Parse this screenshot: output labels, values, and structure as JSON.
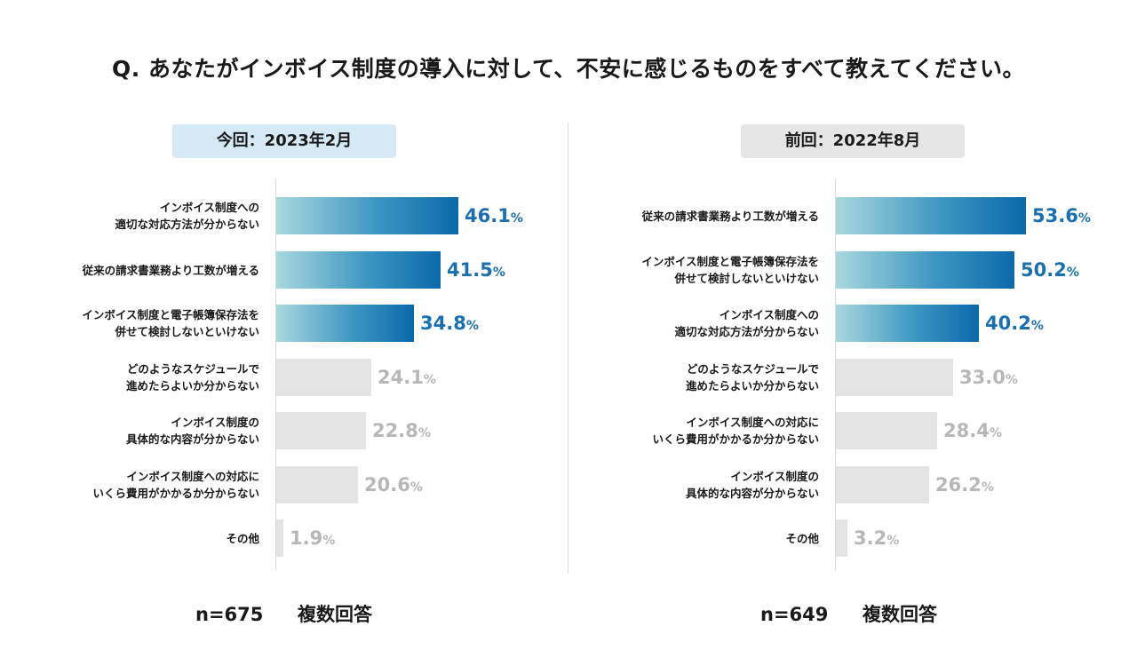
{
  "title": "Q. あなたがインボイス制度の導入に対して、不安に感じるものをすべて教えてください。",
  "colors": {
    "highlight_start": "#a9d8de",
    "highlight_end": "#0b69aa",
    "highlight_text": "#1a6fae",
    "gray_bar": "#e4e4e4",
    "gray_text": "#b7b7b7",
    "badge_current": "#d6eaf5",
    "badge_previous": "#e6e6e6"
  },
  "chart_data": [
    {
      "type": "bar",
      "orientation": "horizontal",
      "title": "今回：2023年2月",
      "unit": "%",
      "n_label": "n=675",
      "note": "複数回答",
      "categories": [
        [
          "インボイス制度への",
          "適切な対応方法が分からない"
        ],
        [
          "従来の請求書業務より工数が増える"
        ],
        [
          "インボイス制度と電子帳簿保存法を",
          "併せて検討しないといけない"
        ],
        [
          "どのようなスケジュールで",
          "進めたらよいか分からない"
        ],
        [
          "インボイス制度の",
          "具体的な内容が分からない"
        ],
        [
          "インボイス制度への対応に",
          "いくら費用がかかるか分からない"
        ],
        [
          "その他"
        ]
      ],
      "values": [
        46.1,
        41.5,
        34.8,
        24.1,
        22.8,
        20.6,
        1.9
      ],
      "value_labels": [
        "46.1",
        "41.5",
        "34.8",
        "24.1",
        "22.8",
        "20.6",
        "1.9"
      ],
      "highlight": [
        true,
        true,
        true,
        false,
        false,
        false,
        false
      ],
      "xlim": [
        0,
        100
      ]
    },
    {
      "type": "bar",
      "orientation": "horizontal",
      "title": "前回：2022年8月",
      "unit": "%",
      "n_label": "n=649",
      "note": "複数回答",
      "categories": [
        [
          "従来の請求書業務より工数が増える"
        ],
        [
          "インボイス制度と電子帳簿保存法を",
          "併せて検討しないといけない"
        ],
        [
          "インボイス制度への",
          "適切な対応方法が分からない"
        ],
        [
          "どのようなスケジュールで",
          "進めたらよいか分からない"
        ],
        [
          "インボイス制度への対応に",
          "いくら費用がかかるか分からない"
        ],
        [
          "インボイス制度の",
          "具体的な内容が分からない"
        ],
        [
          "その他"
        ]
      ],
      "values": [
        53.6,
        50.2,
        40.2,
        33.0,
        28.4,
        26.2,
        3.2
      ],
      "value_labels": [
        "53.6",
        "50.2",
        "40.2",
        "33.0",
        "28.4",
        "26.2",
        "3.2"
      ],
      "highlight": [
        true,
        true,
        true,
        false,
        false,
        false,
        false
      ],
      "xlim": [
        0,
        100
      ]
    }
  ]
}
